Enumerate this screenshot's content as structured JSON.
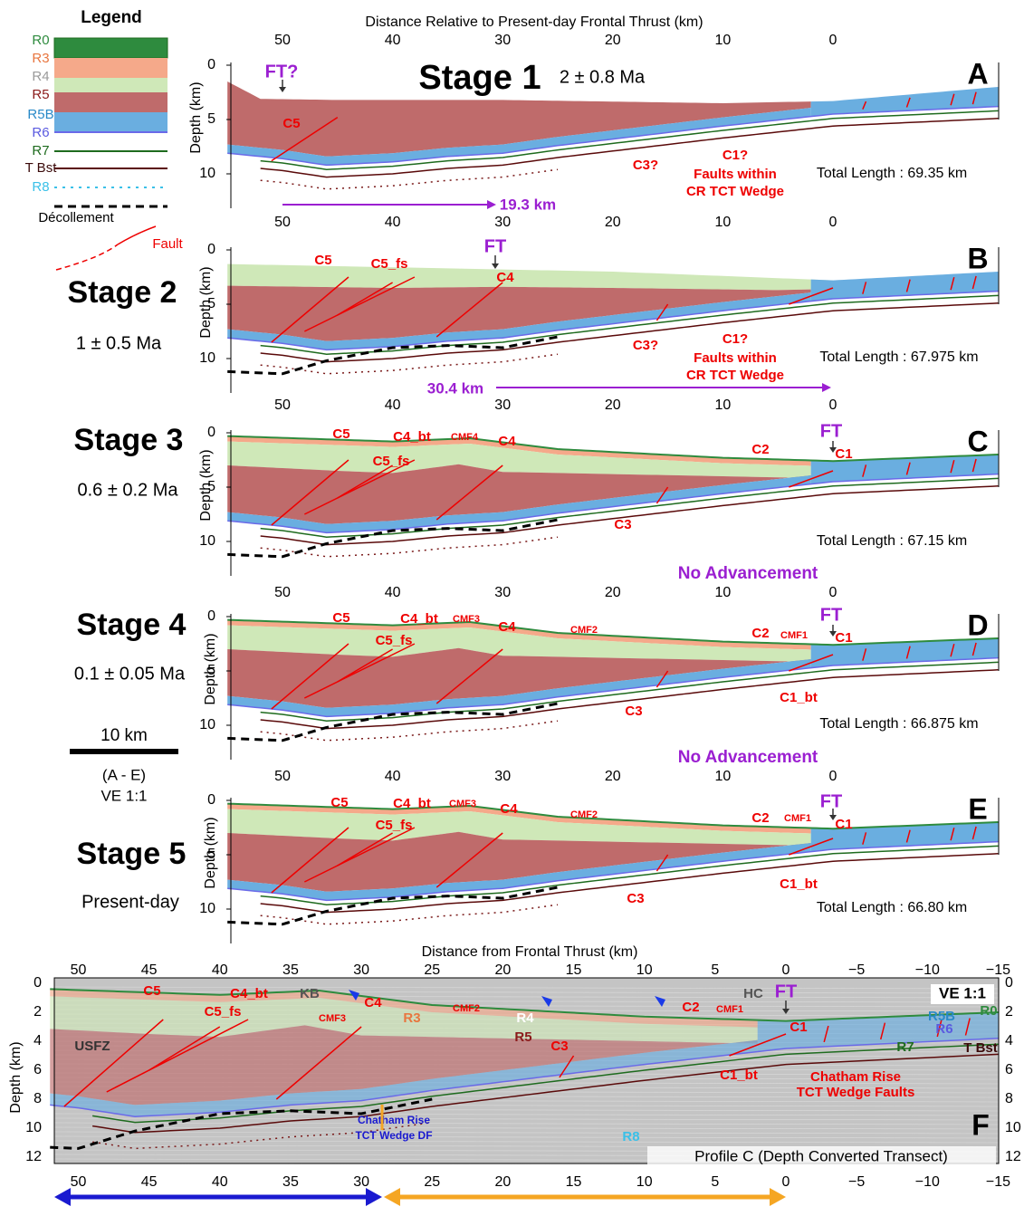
{
  "legend": {
    "title": "Legend",
    "items": [
      {
        "label": "R0",
        "style": "fill",
        "color": "#2e8b3e",
        "text_color": "#2e8b3e"
      },
      {
        "label": "R3",
        "style": "fill",
        "color": "#f5a98a",
        "text_color": "#e8763f"
      },
      {
        "label": "R4",
        "style": "fill",
        "color": "#cfe8b8",
        "text_color": "#9a9a9a"
      },
      {
        "label": "R5",
        "style": "fill",
        "color": "#bf6b6b",
        "text_color": "#8b1a1a"
      },
      {
        "label": "R5B",
        "style": "fill",
        "color": "#6aaee0",
        "text_color": "#2a8ac8"
      },
      {
        "label": "R6",
        "style": "line",
        "color": "#6a6ae8",
        "text_color": "#5a5ae0"
      },
      {
        "label": "R7",
        "style": "line",
        "color": "#1e6b1e",
        "text_color": "#1e6b1e"
      },
      {
        "label": "T Bst",
        "style": "line",
        "color": "#5a0a0a",
        "text_color": "#3a0a0a"
      },
      {
        "label": "R8",
        "style": "dotted",
        "color": "#3ac0e8",
        "text_color": "#3ac0e8"
      }
    ],
    "decollement": "Décollement",
    "fault": "Fault"
  },
  "top_axis_title": "Distance Relative to Present-day Frontal Thrust (km)",
  "x_ticks": [
    "50",
    "40",
    "30",
    "20",
    "10",
    "0"
  ],
  "depth_ticks": [
    "0",
    "5",
    "10"
  ],
  "depth_label": "Depth (km)",
  "scale_bar": {
    "length": "10 km",
    "panels": "(A - E)",
    "ve": "VE 1:1"
  },
  "panels": [
    {
      "letter": "A",
      "stage": "Stage 1",
      "age": "2 ± 0.8 Ma",
      "total_length": "Total Length : 69.35 km",
      "labels": [
        "FT?",
        "C5",
        "C3?",
        "C1?",
        "Faults within",
        "CR TCT Wedge",
        "19.3 km"
      ]
    },
    {
      "letter": "B",
      "stage": "Stage 2",
      "age": "1 ± 0.5 Ma",
      "total_length": "Total Length : 67.975 km",
      "labels": [
        "FT",
        "C5",
        "C5_fs",
        "C4",
        "C3?",
        "C1?",
        "Faults within",
        "CR TCT Wedge",
        "30.4 km"
      ]
    },
    {
      "letter": "C",
      "stage": "Stage 3",
      "age": "0.6 ± 0.2 Ma",
      "total_length": "Total Length : 67.15 km",
      "labels": [
        "FT",
        "C5",
        "C4_bt",
        "CMF4",
        "C4",
        "C5_fs",
        "C2",
        "C1",
        "C3"
      ],
      "advancement": "No Advancement"
    },
    {
      "letter": "D",
      "stage": "Stage 4",
      "age": "0.1 ± 0.05 Ma",
      "total_length": "Total Length : 66.875 km",
      "labels": [
        "FT",
        "C5",
        "C4_bt",
        "CMF3",
        "C4",
        "CMF2",
        "C2",
        "CMF1",
        "C1",
        "C5_fs",
        "C3",
        "C1_bt"
      ],
      "advancement": "No Advancement"
    },
    {
      "letter": "E",
      "stage": "Stage 5",
      "age": "Present-day",
      "total_length": "Total Length : 66.80 km",
      "labels": [
        "FT",
        "C5",
        "C4_bt",
        "CMF3",
        "C4",
        "CMF2",
        "C2",
        "CMF1",
        "C1",
        "C5_fs",
        "C3",
        "C1_bt"
      ]
    }
  ],
  "profile": {
    "letter": "F",
    "axis_title": "Distance from Frontal Thrust (km)",
    "x_ticks": [
      "50",
      "45",
      "40",
      "35",
      "30",
      "25",
      "20",
      "15",
      "10",
      "5",
      "0",
      "−5",
      "−10",
      "−15"
    ],
    "depth_ticks": [
      "0",
      "2",
      "4",
      "6",
      "8",
      "10",
      "12"
    ],
    "depth_label": "Depth (km)",
    "caption": "Profile C (Depth Converted Transect)",
    "labels": [
      "C5",
      "C4_bt",
      "KB",
      "C4",
      "HC",
      "FT",
      "VE 1:1",
      "C5_fs",
      "CMF3",
      "R3",
      "CMF2",
      "R4",
      "R5",
      "C3",
      "C2",
      "CMF1",
      "C1",
      "USFZ",
      "R0",
      "R5B",
      "R6",
      "R7",
      "T Bst",
      "C1_bt",
      "Chatham Rise",
      "TCT Wedge Faults",
      "Chatham Rise",
      "TCT Wedge DF",
      "R8"
    ]
  }
}
